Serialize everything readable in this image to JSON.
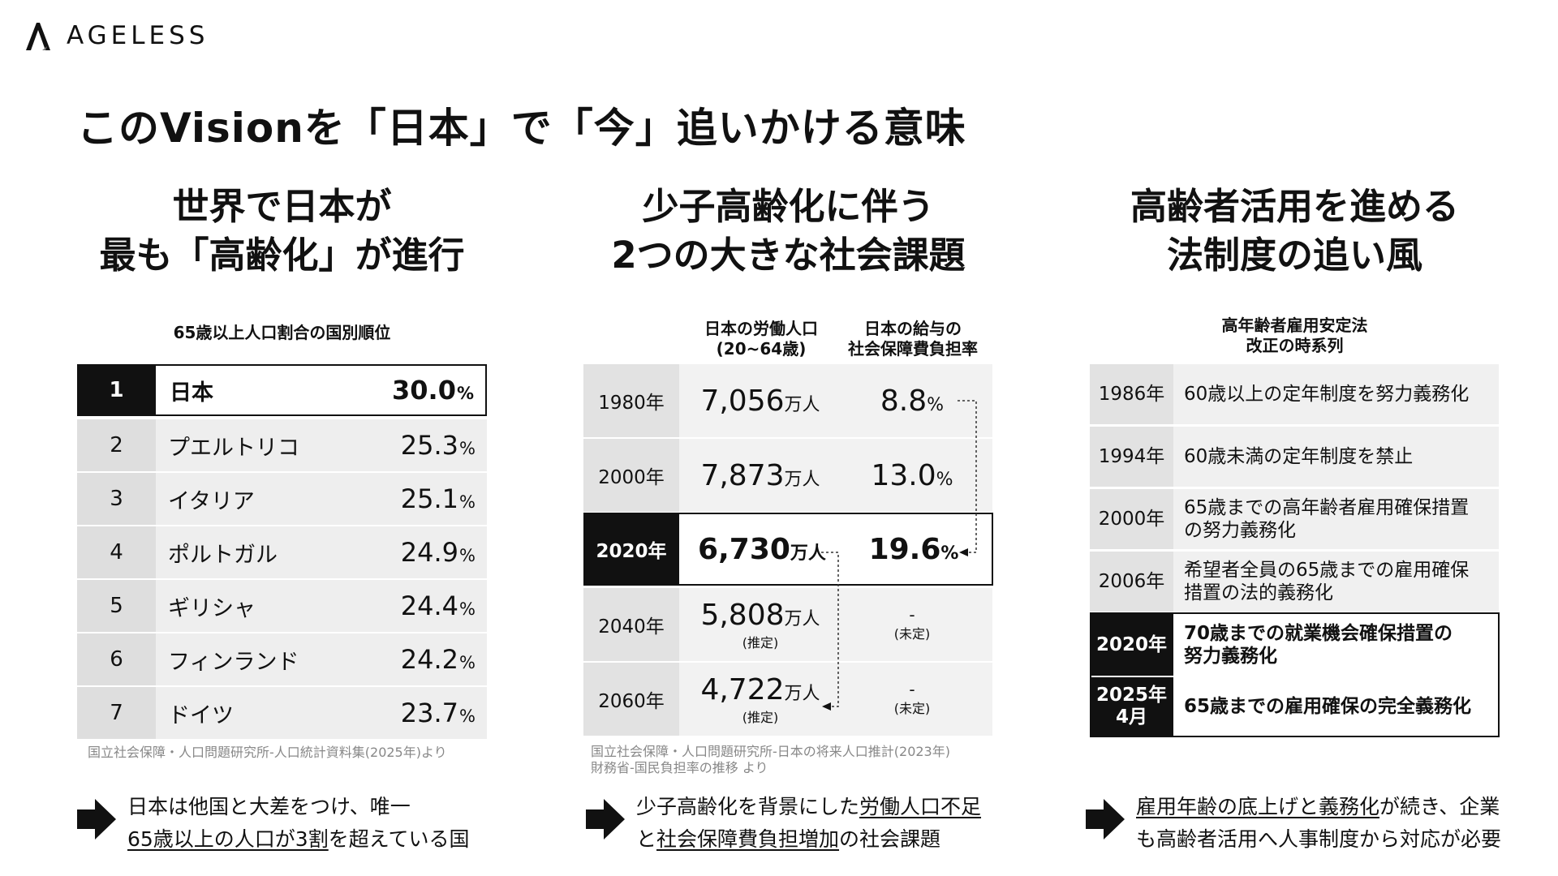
{
  "brand": {
    "name": "AGELESS"
  },
  "title": "このVisionを「日本」で「今」追いかける意味",
  "columns": [
    {
      "title_line1": "世界で日本が",
      "title_line2": "最も「高齢化」が進行"
    },
    {
      "title_line1": "少子高齢化に伴う",
      "title_line2": "2つの大きな社会課題"
    },
    {
      "title_line1": "高齢者活用を進める",
      "title_line2": "法制度の追い風"
    }
  ],
  "ranking": {
    "heading": "65歳以上人口割合の国別順位",
    "unit": "%",
    "rows": [
      {
        "rank": "1",
        "country": "日本",
        "value": "30.0"
      },
      {
        "rank": "2",
        "country": "プエルトリコ",
        "value": "25.3"
      },
      {
        "rank": "3",
        "country": "イタリア",
        "value": "25.1"
      },
      {
        "rank": "4",
        "country": "ポルトガル",
        "value": "24.9"
      },
      {
        "rank": "5",
        "country": "ギリシャ",
        "value": "24.4"
      },
      {
        "rank": "6",
        "country": "フィンランド",
        "value": "24.2"
      },
      {
        "rank": "7",
        "country": "ドイツ",
        "value": "23.7"
      }
    ],
    "source": "国立社会保障・人口問題研究所-人口統計資料集(2025年)より"
  },
  "population": {
    "heading_pop_line1": "日本の労働人口",
    "heading_pop_line2": "(20~64歳)",
    "heading_rate_line1": "日本の給与の",
    "heading_rate_line2": "社会保障費負担率",
    "pop_unit": "万人",
    "rate_unit": "%",
    "estimate_label": "(推定)",
    "undetermined_dash": "-",
    "undetermined_label": "(未定)",
    "rows": [
      {
        "year": "1980年",
        "pop": "7,056",
        "rate": "8.8"
      },
      {
        "year": "2000年",
        "pop": "7,873",
        "rate": "13.0"
      },
      {
        "year": "2020年",
        "pop": "6,730",
        "rate": "19.6"
      },
      {
        "year": "2040年",
        "pop": "5,808"
      },
      {
        "year": "2060年",
        "pop": "4,722"
      }
    ],
    "source_line1": "国立社会保障・人口問題研究所-日本の将来人口推計(2023年)",
    "source_line2": "財務省-国民負担率の推移 より"
  },
  "law": {
    "heading_line1": "高年齢者雇用安定法",
    "heading_line2": "改正の時系列",
    "rows": [
      {
        "year": "1986年",
        "text": "60歳以上の定年制度を努力義務化"
      },
      {
        "year": "1994年",
        "text": "60歳未満の定年制度を禁止"
      },
      {
        "year": "2000年",
        "text_line1": "65歳までの高年齢者雇用確保措置",
        "text_line2": "の努力義務化"
      },
      {
        "year": "2006年",
        "text_line1": "希望者全員の65歳までの雇用確保",
        "text_line2": "措置の法的義務化"
      },
      {
        "year": "2020年",
        "text_line1": "70歳までの就業機会確保措置の",
        "text_line2": "努力義務化"
      },
      {
        "year_line1": "2025年",
        "year_line2": "4月",
        "text": "65歳までの雇用確保の完全義務化"
      }
    ]
  },
  "conclusions": [
    {
      "line1": "日本は他国と大差をつけ、唯一",
      "line2_u": "65歳以上の人口が3割",
      "line2_rest": "を超えている国"
    },
    {
      "line1_pre": "少子高齢化を背景にした",
      "line1_u": "労働人口不足",
      "line2_pre": "と",
      "line2_u": "社会保障費負担増加",
      "line2_rest": "の社会課題"
    },
    {
      "line1_u": "雇用年齢の底上げと義務化",
      "line1_rest": "が続き、企業",
      "line2": "も高齢者活用へ人事制度から対応が必要"
    }
  ]
}
